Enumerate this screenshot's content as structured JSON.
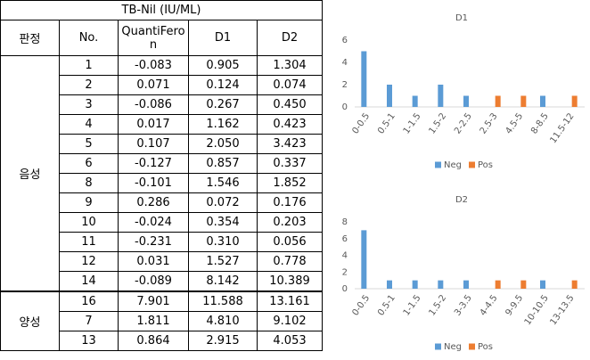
{
  "table": {
    "title": "TB-Nil (IU/ML)",
    "headers": [
      "판정",
      "No.",
      "QuantiFeron",
      "D1",
      "D2"
    ],
    "groups": [
      {
        "label": "음성",
        "rows": [
          [
            "1",
            "-0.083",
            "0.905",
            "1.304"
          ],
          [
            "2",
            "0.071",
            "0.124",
            "0.074"
          ],
          [
            "3",
            "-0.086",
            "0.267",
            "0.450"
          ],
          [
            "4",
            "0.017",
            "1.162",
            "0.423"
          ],
          [
            "5",
            "0.107",
            "2.050",
            "3.423"
          ],
          [
            "6",
            "-0.127",
            "0.857",
            "0.337"
          ],
          [
            "8",
            "-0.101",
            "1.546",
            "1.852"
          ],
          [
            "9",
            "0.286",
            "0.072",
            "0.176"
          ],
          [
            "10",
            "-0.024",
            "0.354",
            "0.203"
          ],
          [
            "11",
            "-0.231",
            "0.310",
            "0.056"
          ],
          [
            "12",
            "0.031",
            "1.527",
            "0.778"
          ],
          [
            "14",
            "-0.089",
            "8.142",
            "10.389"
          ]
        ]
      },
      {
        "label": "양성",
        "rows": [
          [
            "16",
            "7.901",
            "11.588",
            "13.161"
          ],
          [
            "7",
            "1.811",
            "4.810",
            "9.102"
          ],
          [
            "13",
            "0.864",
            "2.915",
            "4.053"
          ]
        ]
      }
    ]
  },
  "chart_data": [
    {
      "type": "bar",
      "title": "D1",
      "categories": [
        "0-0.5",
        "0.5-1",
        "1-1.5",
        "1.5-2",
        "2-2.5",
        "2.5-3",
        "4.5-5",
        "8-8.5",
        "11.5-12"
      ],
      "series": [
        {
          "name": "Neg",
          "color": "#5b9bd5",
          "values": [
            5,
            2,
            1,
            2,
            1,
            0,
            0,
            1,
            0
          ]
        },
        {
          "name": "Pos",
          "color": "#ed7d31",
          "values": [
            0,
            0,
            0,
            0,
            0,
            1,
            1,
            0,
            1
          ]
        }
      ],
      "ylim": [
        0,
        6
      ],
      "yticks": [
        0,
        2,
        4,
        6
      ],
      "grid": false,
      "legend": "bottom"
    },
    {
      "type": "bar",
      "title": "D2",
      "categories": [
        "0-0.5",
        "0.5-1",
        "1-1.5",
        "1.5-2",
        "3-3.5",
        "4-4.5",
        "9-9.5",
        "10-10.5",
        "13-13.5"
      ],
      "series": [
        {
          "name": "Neg",
          "color": "#5b9bd5",
          "values": [
            7,
            1,
            1,
            1,
            1,
            0,
            0,
            1,
            0
          ]
        },
        {
          "name": "Pos",
          "color": "#ed7d31",
          "values": [
            0,
            0,
            0,
            0,
            0,
            1,
            1,
            0,
            1
          ]
        }
      ],
      "ylim": [
        0,
        8
      ],
      "yticks": [
        0,
        2,
        4,
        6,
        8
      ],
      "grid": false,
      "legend": "bottom"
    }
  ]
}
